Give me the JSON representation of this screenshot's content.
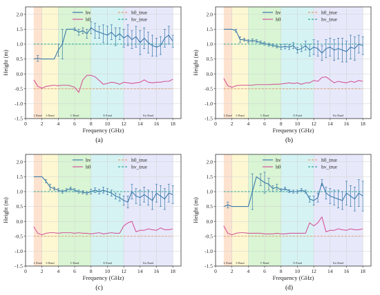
{
  "bands": [
    {
      "label": "L Band",
      "from": 1,
      "to": 2,
      "color": "#fde3cf"
    },
    {
      "label": "S Band",
      "from": 2,
      "to": 4,
      "color": "#fdf8d2"
    },
    {
      "label": "C Band",
      "from": 4,
      "to": 8,
      "color": "#d9f5d4"
    },
    {
      "label": "X Band",
      "from": 8,
      "to": 12,
      "color": "#d6f3f3"
    },
    {
      "label": "Ku Band",
      "from": 12,
      "to": 18,
      "color": "#e7e9fb"
    }
  ],
  "colors": {
    "hv": "#3a78a8",
    "h0": "#d5559a",
    "h0_true": "#e39a70",
    "hv_true": "#28a59a"
  },
  "chart_data": [
    {
      "panel": "(a)",
      "type": "line",
      "xlabel": "Frequency (GHz)",
      "ylabel": "Height (m)",
      "xlim": [
        0,
        19
      ],
      "ylim": [
        -1.5,
        2.25
      ],
      "xticks": [
        0,
        2,
        4,
        6,
        8,
        10,
        12,
        14,
        16,
        18
      ],
      "yticks": [
        -1.5,
        -1.0,
        -0.5,
        0.0,
        0.5,
        1.0,
        1.5,
        2.0
      ],
      "legend": [
        "hv",
        "h0",
        "h0_true",
        "hv_true"
      ],
      "reference_lines": {
        "h0_true": -0.5,
        "hv_true": 1.0
      },
      "series": [
        {
          "name": "hv",
          "x": [
            1.0,
            1.5,
            2.0,
            2.5,
            3.0,
            3.5,
            4.0,
            4.5,
            5.0,
            5.5,
            6.0,
            6.5,
            7.0,
            7.5,
            8.0,
            8.5,
            9.0,
            9.5,
            10.0,
            10.5,
            11.0,
            11.5,
            12.0,
            12.5,
            13.0,
            13.5,
            14.0,
            14.5,
            15.0,
            15.5,
            16.0,
            16.5,
            17.0,
            17.5,
            18.0
          ],
          "values": [
            0.5,
            0.52,
            0.5,
            0.5,
            0.5,
            0.5,
            0.8,
            1.0,
            1.5,
            1.5,
            1.5,
            1.4,
            1.45,
            1.35,
            1.55,
            1.45,
            1.4,
            1.35,
            1.3,
            1.4,
            1.25,
            1.35,
            1.2,
            1.3,
            1.15,
            1.25,
            1.05,
            1.2,
            1.05,
            0.95,
            0.9,
            0.95,
            1.2,
            1.3,
            1.1
          ],
          "err": [
            0.0,
            0.1,
            0.0,
            0.0,
            0.0,
            0.0,
            0.2,
            0.5,
            0.0,
            0.0,
            0.05,
            0.1,
            0.1,
            0.15,
            0.2,
            0.25,
            0.2,
            0.3,
            0.3,
            0.25,
            0.3,
            0.2,
            0.3,
            0.35,
            0.3,
            0.35,
            0.4,
            0.35,
            0.35,
            0.35,
            0.3,
            0.3,
            0.3,
            0.3,
            0.2
          ]
        },
        {
          "name": "h0",
          "x": [
            1.0,
            1.5,
            2.0,
            2.5,
            3.0,
            3.5,
            4.0,
            4.5,
            5.0,
            5.5,
            6.0,
            6.5,
            7.0,
            7.5,
            8.0,
            8.5,
            9.0,
            9.5,
            10.0,
            10.5,
            11.0,
            11.5,
            12.0,
            12.5,
            13.0,
            13.5,
            14.0,
            14.5,
            15.0,
            15.5,
            16.0,
            16.5,
            17.0,
            17.5,
            18.0
          ],
          "values": [
            -0.2,
            -0.42,
            -0.48,
            -0.42,
            -0.4,
            -0.38,
            -0.4,
            -0.38,
            -0.38,
            -0.4,
            -0.45,
            -0.62,
            -0.2,
            -0.05,
            -0.05,
            -0.1,
            -0.22,
            -0.35,
            -0.32,
            -0.28,
            -0.3,
            -0.35,
            -0.28,
            -0.3,
            -0.32,
            -0.3,
            -0.28,
            -0.2,
            -0.28,
            -0.3,
            -0.28,
            -0.28,
            -0.25,
            -0.25,
            -0.18
          ]
        }
      ]
    },
    {
      "panel": "(b)",
      "type": "line",
      "xlabel": "Frequency (GHz)",
      "ylabel": "Height (m)",
      "xlim": [
        0,
        19
      ],
      "ylim": [
        -1.5,
        2.25
      ],
      "xticks": [
        0,
        2,
        4,
        6,
        8,
        10,
        12,
        14,
        16,
        18
      ],
      "yticks": [
        -1.5,
        -1.0,
        -0.5,
        0.0,
        0.5,
        1.0,
        1.5,
        2.0
      ],
      "legend": [
        "hv",
        "h0",
        "h0_true",
        "hv_true"
      ],
      "reference_lines": {
        "h0_true": -0.5,
        "hv_true": 1.0
      },
      "series": [
        {
          "name": "hv",
          "x": [
            1.0,
            1.5,
            2.0,
            2.5,
            3.0,
            3.5,
            4.0,
            4.5,
            5.0,
            5.5,
            6.0,
            6.5,
            7.0,
            7.5,
            8.0,
            8.5,
            9.0,
            9.5,
            10.0,
            10.5,
            11.0,
            11.5,
            12.0,
            12.5,
            13.0,
            13.5,
            14.0,
            14.5,
            15.0,
            15.5,
            16.0,
            16.5,
            17.0,
            17.5,
            18.0
          ],
          "values": [
            1.5,
            1.5,
            1.5,
            1.45,
            1.15,
            1.15,
            1.1,
            1.12,
            1.1,
            1.05,
            1.02,
            0.98,
            0.96,
            0.92,
            0.9,
            0.92,
            0.9,
            0.95,
            0.8,
            0.85,
            0.95,
            0.8,
            0.9,
            0.85,
            0.7,
            0.85,
            0.9,
            0.8,
            0.85,
            0.8,
            0.75,
            0.9,
            0.85,
            1.0,
            0.95
          ],
          "err": [
            0.0,
            0.0,
            0.0,
            0.05,
            0.1,
            0.05,
            0.05,
            0.05,
            0.05,
            0.05,
            0.05,
            0.05,
            0.05,
            0.05,
            0.08,
            0.08,
            0.08,
            0.1,
            0.1,
            0.1,
            0.15,
            0.2,
            0.25,
            0.25,
            0.25,
            0.3,
            0.3,
            0.35,
            0.35,
            0.4,
            0.35,
            0.4,
            0.4,
            0.3,
            0.3
          ]
        },
        {
          "name": "h0",
          "x": [
            1.0,
            1.5,
            2.0,
            2.5,
            3.0,
            3.5,
            4.0,
            4.5,
            5.0,
            5.5,
            6.0,
            6.5,
            7.0,
            7.5,
            8.0,
            8.5,
            9.0,
            9.5,
            10.0,
            10.5,
            11.0,
            11.5,
            12.0,
            12.5,
            13.0,
            13.5,
            14.0,
            14.5,
            15.0,
            15.5,
            16.0,
            16.5,
            17.0,
            17.5,
            18.0
          ],
          "values": [
            -0.15,
            -0.4,
            -0.45,
            -0.4,
            -0.38,
            -0.38,
            -0.38,
            -0.38,
            -0.36,
            -0.36,
            -0.36,
            -0.36,
            -0.35,
            -0.35,
            -0.34,
            -0.32,
            -0.3,
            -0.32,
            -0.3,
            -0.35,
            -0.3,
            -0.3,
            -0.22,
            -0.25,
            -0.12,
            -0.1,
            -0.2,
            -0.3,
            -0.25,
            -0.28,
            -0.3,
            -0.25,
            -0.28,
            -0.22,
            -0.25
          ]
        }
      ]
    },
    {
      "panel": "(c)",
      "type": "line",
      "xlabel": "Frequency (GHz)",
      "ylabel": "Height (m)",
      "xlim": [
        0,
        19
      ],
      "ylim": [
        -1.5,
        2.25
      ],
      "xticks": [
        0,
        2,
        4,
        6,
        8,
        10,
        12,
        14,
        16,
        18
      ],
      "yticks": [
        -1.5,
        -1.0,
        -0.5,
        0.0,
        0.5,
        1.0,
        1.5,
        2.0
      ],
      "legend": [
        "hv",
        "h0",
        "h0_true",
        "hv_true"
      ],
      "reference_lines": {
        "h0_true": -0.5,
        "hv_true": 1.0
      },
      "series": [
        {
          "name": "hv",
          "x": [
            1.0,
            1.5,
            2.0,
            2.5,
            3.0,
            3.5,
            4.0,
            4.5,
            5.0,
            5.5,
            6.0,
            6.5,
            7.0,
            7.5,
            8.0,
            8.5,
            9.0,
            9.5,
            10.0,
            10.5,
            11.0,
            11.5,
            12.0,
            12.5,
            13.0,
            13.5,
            14.0,
            14.5,
            15.0,
            15.5,
            16.0,
            16.5,
            17.0,
            17.5,
            18.0
          ],
          "values": [
            1.5,
            1.5,
            1.5,
            1.35,
            1.15,
            1.1,
            1.05,
            1.0,
            1.05,
            1.1,
            1.05,
            1.0,
            0.98,
            0.95,
            1.0,
            1.05,
            1.0,
            1.05,
            1.0,
            0.95,
            0.85,
            0.8,
            0.7,
            0.65,
            1.0,
            0.85,
            0.8,
            0.9,
            0.8,
            0.7,
            0.95,
            0.85,
            0.75,
            0.95,
            0.9
          ],
          "err": [
            0.0,
            0.0,
            0.0,
            0.05,
            0.1,
            0.05,
            0.05,
            0.05,
            0.05,
            0.05,
            0.05,
            0.05,
            0.05,
            0.05,
            0.08,
            0.08,
            0.08,
            0.1,
            0.1,
            0.1,
            0.1,
            0.12,
            0.15,
            0.2,
            0.25,
            0.25,
            0.25,
            0.25,
            0.25,
            0.3,
            0.3,
            0.35,
            0.35,
            0.3,
            0.3
          ]
        },
        {
          "name": "h0",
          "x": [
            1.0,
            1.5,
            2.0,
            2.5,
            3.0,
            3.5,
            4.0,
            4.5,
            5.0,
            5.5,
            6.0,
            6.5,
            7.0,
            7.5,
            8.0,
            8.5,
            9.0,
            9.5,
            10.0,
            10.5,
            11.0,
            11.5,
            12.0,
            12.5,
            13.0,
            13.5,
            14.0,
            14.5,
            15.0,
            15.5,
            16.0,
            16.5,
            17.0,
            17.5,
            18.0
          ],
          "values": [
            -0.18,
            -0.4,
            -0.45,
            -0.4,
            -0.38,
            -0.38,
            -0.4,
            -0.38,
            -0.38,
            -0.38,
            -0.4,
            -0.38,
            -0.4,
            -0.4,
            -0.42,
            -0.4,
            -0.38,
            -0.42,
            -0.4,
            -0.38,
            -0.4,
            -0.4,
            -0.15,
            -0.05,
            0.0,
            -0.35,
            -0.3,
            -0.3,
            -0.25,
            -0.28,
            -0.3,
            -0.22,
            -0.28,
            -0.28,
            -0.25
          ]
        }
      ]
    },
    {
      "panel": "(d)",
      "type": "line",
      "xlabel": "Frequency (GHz)",
      "ylabel": "Height (m)",
      "xlim": [
        0,
        19
      ],
      "ylim": [
        -1.5,
        2.25
      ],
      "xticks": [
        0,
        2,
        4,
        6,
        8,
        10,
        12,
        14,
        16,
        18
      ],
      "yticks": [
        -1.5,
        -1.0,
        -0.5,
        0.0,
        0.5,
        1.0,
        1.5,
        2.0
      ],
      "legend": [
        "hv",
        "h0",
        "h0_true",
        "hv_true"
      ],
      "reference_lines": {
        "h0_true": -0.5,
        "hv_true": 1.0
      },
      "series": [
        {
          "name": "hv",
          "x": [
            1.0,
            1.5,
            2.0,
            2.5,
            3.0,
            3.5,
            4.0,
            4.5,
            5.0,
            5.5,
            6.0,
            6.5,
            7.0,
            7.5,
            8.0,
            8.5,
            9.0,
            9.5,
            10.0,
            10.5,
            11.0,
            11.5,
            12.0,
            12.5,
            13.0,
            13.5,
            14.0,
            14.5,
            15.0,
            15.5,
            16.0,
            16.5,
            17.0,
            17.5,
            18.0
          ],
          "values": [
            0.5,
            0.55,
            0.5,
            0.5,
            0.5,
            0.5,
            0.5,
            1.0,
            1.5,
            1.4,
            1.3,
            1.25,
            1.1,
            1.15,
            1.05,
            1.1,
            1.02,
            1.0,
            1.0,
            1.05,
            1.0,
            0.75,
            0.7,
            0.8,
            1.3,
            0.95,
            0.85,
            0.8,
            0.75,
            0.7,
            0.95,
            0.85,
            0.75,
            0.95,
            0.85
          ],
          "err": [
            0.0,
            0.1,
            0.0,
            0.0,
            0.0,
            0.0,
            0.0,
            0.6,
            0.0,
            0.2,
            0.35,
            0.2,
            0.1,
            0.1,
            0.05,
            0.05,
            0.05,
            0.05,
            0.05,
            0.05,
            0.05,
            0.1,
            0.15,
            0.15,
            0.1,
            0.2,
            0.25,
            0.25,
            0.3,
            0.3,
            0.4,
            0.35,
            0.4,
            0.45,
            0.5
          ]
        },
        {
          "name": "h0",
          "x": [
            1.0,
            1.5,
            2.0,
            2.5,
            3.0,
            3.5,
            4.0,
            4.5,
            5.0,
            5.5,
            6.0,
            6.5,
            7.0,
            7.5,
            8.0,
            8.5,
            9.0,
            9.5,
            10.0,
            10.5,
            11.0,
            11.5,
            12.0,
            12.5,
            13.0,
            13.5,
            14.0,
            14.5,
            15.0,
            15.5,
            16.0,
            16.5,
            17.0,
            17.5,
            18.0
          ],
          "values": [
            -0.15,
            -0.4,
            -0.45,
            -0.4,
            -0.38,
            -0.38,
            -0.4,
            -0.4,
            -0.4,
            -0.4,
            -0.42,
            -0.42,
            -0.42,
            -0.4,
            -0.42,
            -0.42,
            -0.4,
            -0.4,
            -0.4,
            -0.4,
            -0.4,
            -0.05,
            -0.15,
            -0.05,
            0.15,
            -0.35,
            -0.3,
            -0.3,
            -0.25,
            -0.28,
            -0.3,
            -0.25,
            -0.28,
            -0.28,
            -0.25
          ]
        }
      ]
    }
  ]
}
